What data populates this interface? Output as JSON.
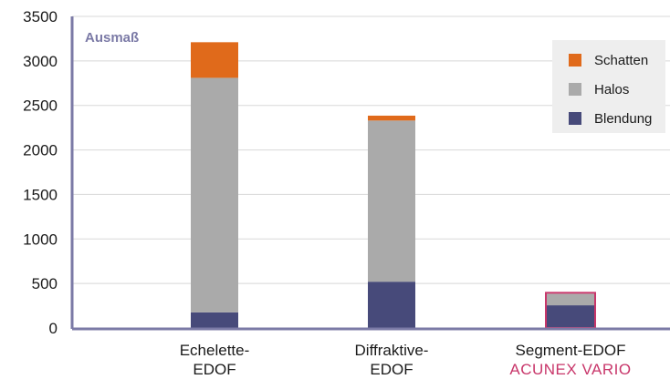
{
  "chart_data": {
    "type": "bar",
    "stacked": true,
    "ylabel": "Ausmaß",
    "ylim": [
      0,
      3500
    ],
    "yticks": [
      0,
      500,
      1000,
      1500,
      2000,
      2500,
      3000,
      3500
    ],
    "categories": [
      [
        "Echelette-",
        "EDOF"
      ],
      [
        "Diffraktive-",
        "EDOF"
      ],
      [
        "Segment-EDOF",
        "ACUNEX VARIO"
      ]
    ],
    "series": [
      {
        "name": "Blendung",
        "color": "#474a7a",
        "values": [
          175,
          520,
          255
        ]
      },
      {
        "name": "Halos",
        "color": "#aaaaaa",
        "values": [
          2635,
          1810,
          130
        ]
      },
      {
        "name": "Schatten",
        "color": "#e06a1b",
        "values": [
          400,
          55,
          0
        ]
      }
    ],
    "legend_order": [
      "Schatten",
      "Halos",
      "Blendung"
    ],
    "legend_position": "top-right",
    "grid": true,
    "highlight": {
      "category_index": 2,
      "color": "#c8366a",
      "note": "highlighted bar with outline; second label line in accent color"
    },
    "colors": {
      "axis": "#7b7aa6",
      "grid": "#d8d8d8",
      "text": "#1a1a1a",
      "ylabel_text": "#7b7aa6",
      "legend_bg": "#eeeeee",
      "accent": "#c8366a"
    }
  }
}
